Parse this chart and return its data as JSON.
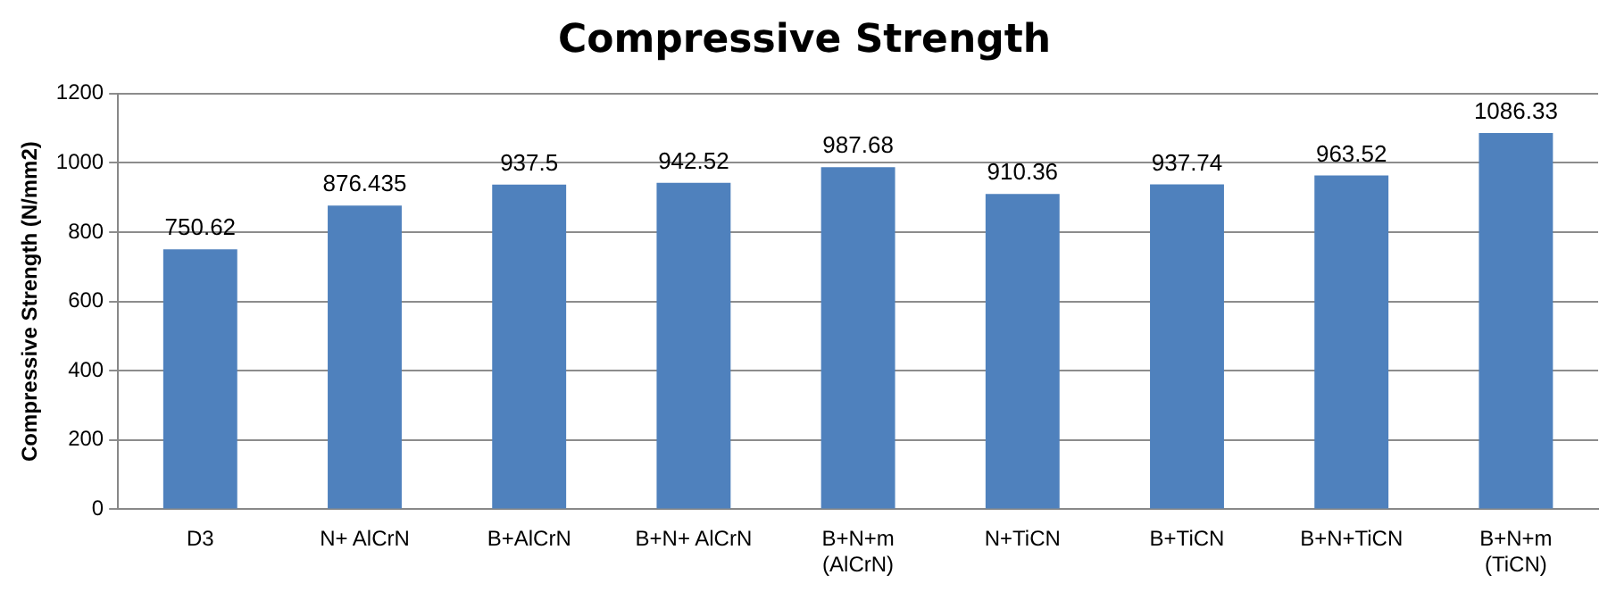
{
  "chart_data": {
    "type": "bar",
    "title": "Compressive Strength",
    "ylabel": "Compressive Strength (N/mm2)",
    "categories": [
      "D3",
      "N+ AlCrN",
      "B+AlCrN",
      "B+N+ AlCrN",
      "B+N+m\n(AlCrN)",
      "N+TiCN",
      "B+TiCN",
      "B+N+TiCN",
      "B+N+m\n(TiCN)"
    ],
    "values": [
      750.62,
      876.435,
      937.5,
      942.52,
      987.68,
      910.36,
      937.74,
      963.52,
      1086.33
    ],
    "color": "#4f81bd",
    "ylim": [
      0,
      1200
    ],
    "yticks": [
      0,
      200,
      400,
      600,
      800,
      1000,
      1200
    ],
    "grid": "y",
    "data_labels": true,
    "legend": false
  }
}
